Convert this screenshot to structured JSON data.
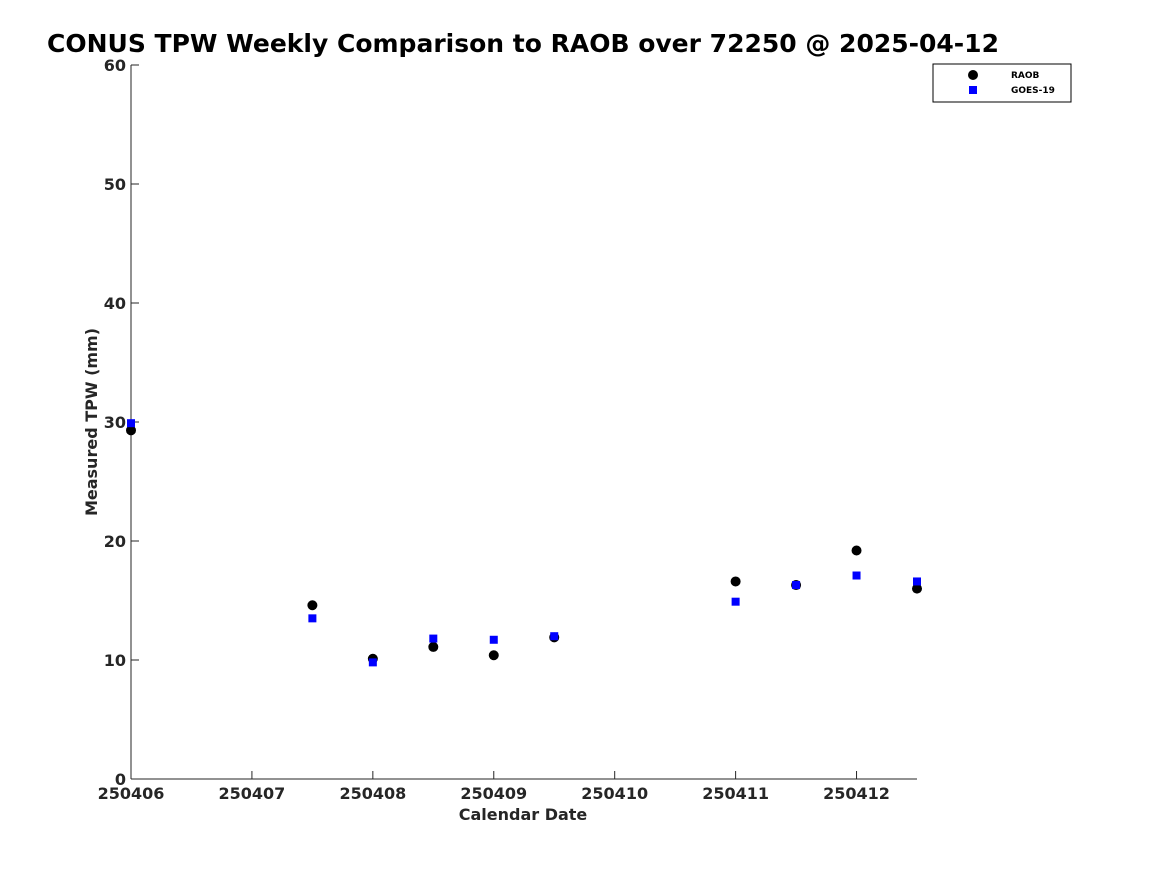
{
  "chart_data": {
    "type": "scatter",
    "title": "CONUS TPW Weekly Comparison to RAOB over 72250 @ 2025-04-12",
    "xlabel": "Calendar Date",
    "ylabel": "Measured TPW (mm)",
    "xlim": [
      250406,
      250412.5
    ],
    "ylim": [
      0,
      60
    ],
    "xticks": [
      250406,
      250407,
      250408,
      250409,
      250410,
      250411,
      250412
    ],
    "xtick_labels": [
      "250406",
      "250407",
      "250408",
      "250409",
      "250410",
      "250411",
      "250412"
    ],
    "yticks": [
      0,
      10,
      20,
      30,
      40,
      50,
      60
    ],
    "ytick_labels": [
      "0",
      "10",
      "20",
      "30",
      "40",
      "50",
      "60"
    ],
    "grid": false,
    "legend_position": "top-right",
    "series": [
      {
        "name": "RAOB",
        "marker": "circle",
        "color": "#000000",
        "x": [
          250406,
          250407.5,
          250408,
          250408.5,
          250409,
          250409.5,
          250411,
          250411.5,
          250412,
          250412.5
        ],
        "y": [
          29.3,
          14.6,
          10.1,
          11.1,
          10.4,
          11.9,
          16.6,
          16.3,
          19.2,
          16.0
        ]
      },
      {
        "name": "GOES-19",
        "marker": "square",
        "color": "#0000ff",
        "x": [
          250406,
          250407.5,
          250408,
          250408.5,
          250409,
          250409.5,
          250411,
          250411.5,
          250412,
          250412.5
        ],
        "y": [
          29.9,
          13.5,
          9.8,
          11.8,
          11.7,
          12.0,
          14.9,
          16.3,
          17.1,
          16.6
        ]
      }
    ]
  }
}
